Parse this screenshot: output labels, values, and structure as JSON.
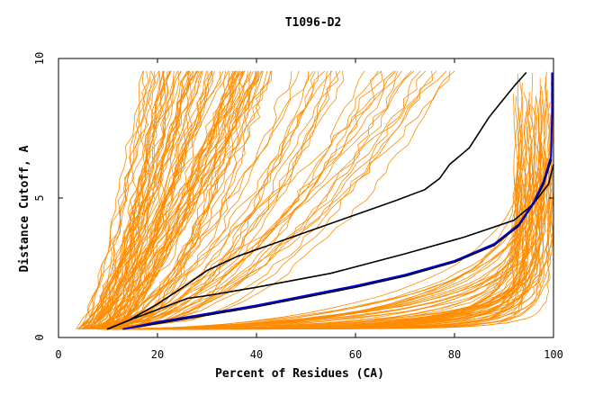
{
  "chart_data": {
    "type": "line",
    "title": "T1096-D2",
    "xlabel": "Percent of Residues (CA)",
    "ylabel": "Distance Cutoff, A",
    "xlim": [
      0,
      100
    ],
    "ylim": [
      0,
      10
    ],
    "x_ticks": [
      0,
      20,
      40,
      60,
      80,
      100
    ],
    "y_ticks": [
      0,
      5,
      10
    ],
    "grid": false,
    "colors": {
      "models": "#ff8c00",
      "highlight_black": "#000000",
      "highlight_blue": "#0000cc"
    },
    "series": [
      {
        "color": "#000000",
        "x": [
          9.8,
          14,
          20,
          26,
          30,
          36,
          44,
          52,
          60,
          68,
          74,
          77,
          79,
          83,
          87,
          92,
          94.5
        ],
        "y": [
          0.3,
          0.6,
          1.2,
          1.9,
          2.4,
          2.9,
          3.4,
          3.9,
          4.4,
          4.9,
          5.3,
          5.7,
          6.2,
          6.8,
          7.9,
          9.0,
          9.5
        ]
      },
      {
        "color": "#000000",
        "x": [
          10,
          14,
          20,
          26,
          30,
          40,
          55,
          70,
          82,
          92,
          96,
          99,
          100
        ],
        "y": [
          0.3,
          0.6,
          1.0,
          1.4,
          1.5,
          1.8,
          2.3,
          3.0,
          3.6,
          4.2,
          4.8,
          5.5,
          6.2
        ]
      },
      {
        "color": "#000000",
        "x": [
          13,
          20,
          30,
          40,
          50,
          60,
          70,
          80,
          88,
          93,
          96,
          98,
          99.6
        ],
        "y": [
          0.3,
          0.5,
          0.8,
          1.1,
          1.45,
          1.8,
          2.2,
          2.7,
          3.3,
          4.0,
          4.8,
          5.5,
          6.4
        ]
      },
      {
        "color": "#0000cc",
        "x": [
          13,
          20,
          30,
          40,
          50,
          60,
          70,
          80,
          88,
          93,
          96,
          98,
          99.5,
          99.7,
          99.7
        ],
        "y": [
          0.3,
          0.55,
          0.85,
          1.15,
          1.5,
          1.85,
          2.25,
          2.75,
          3.35,
          4.05,
          4.85,
          5.6,
          6.5,
          8.0,
          9.5
        ]
      }
    ]
  }
}
